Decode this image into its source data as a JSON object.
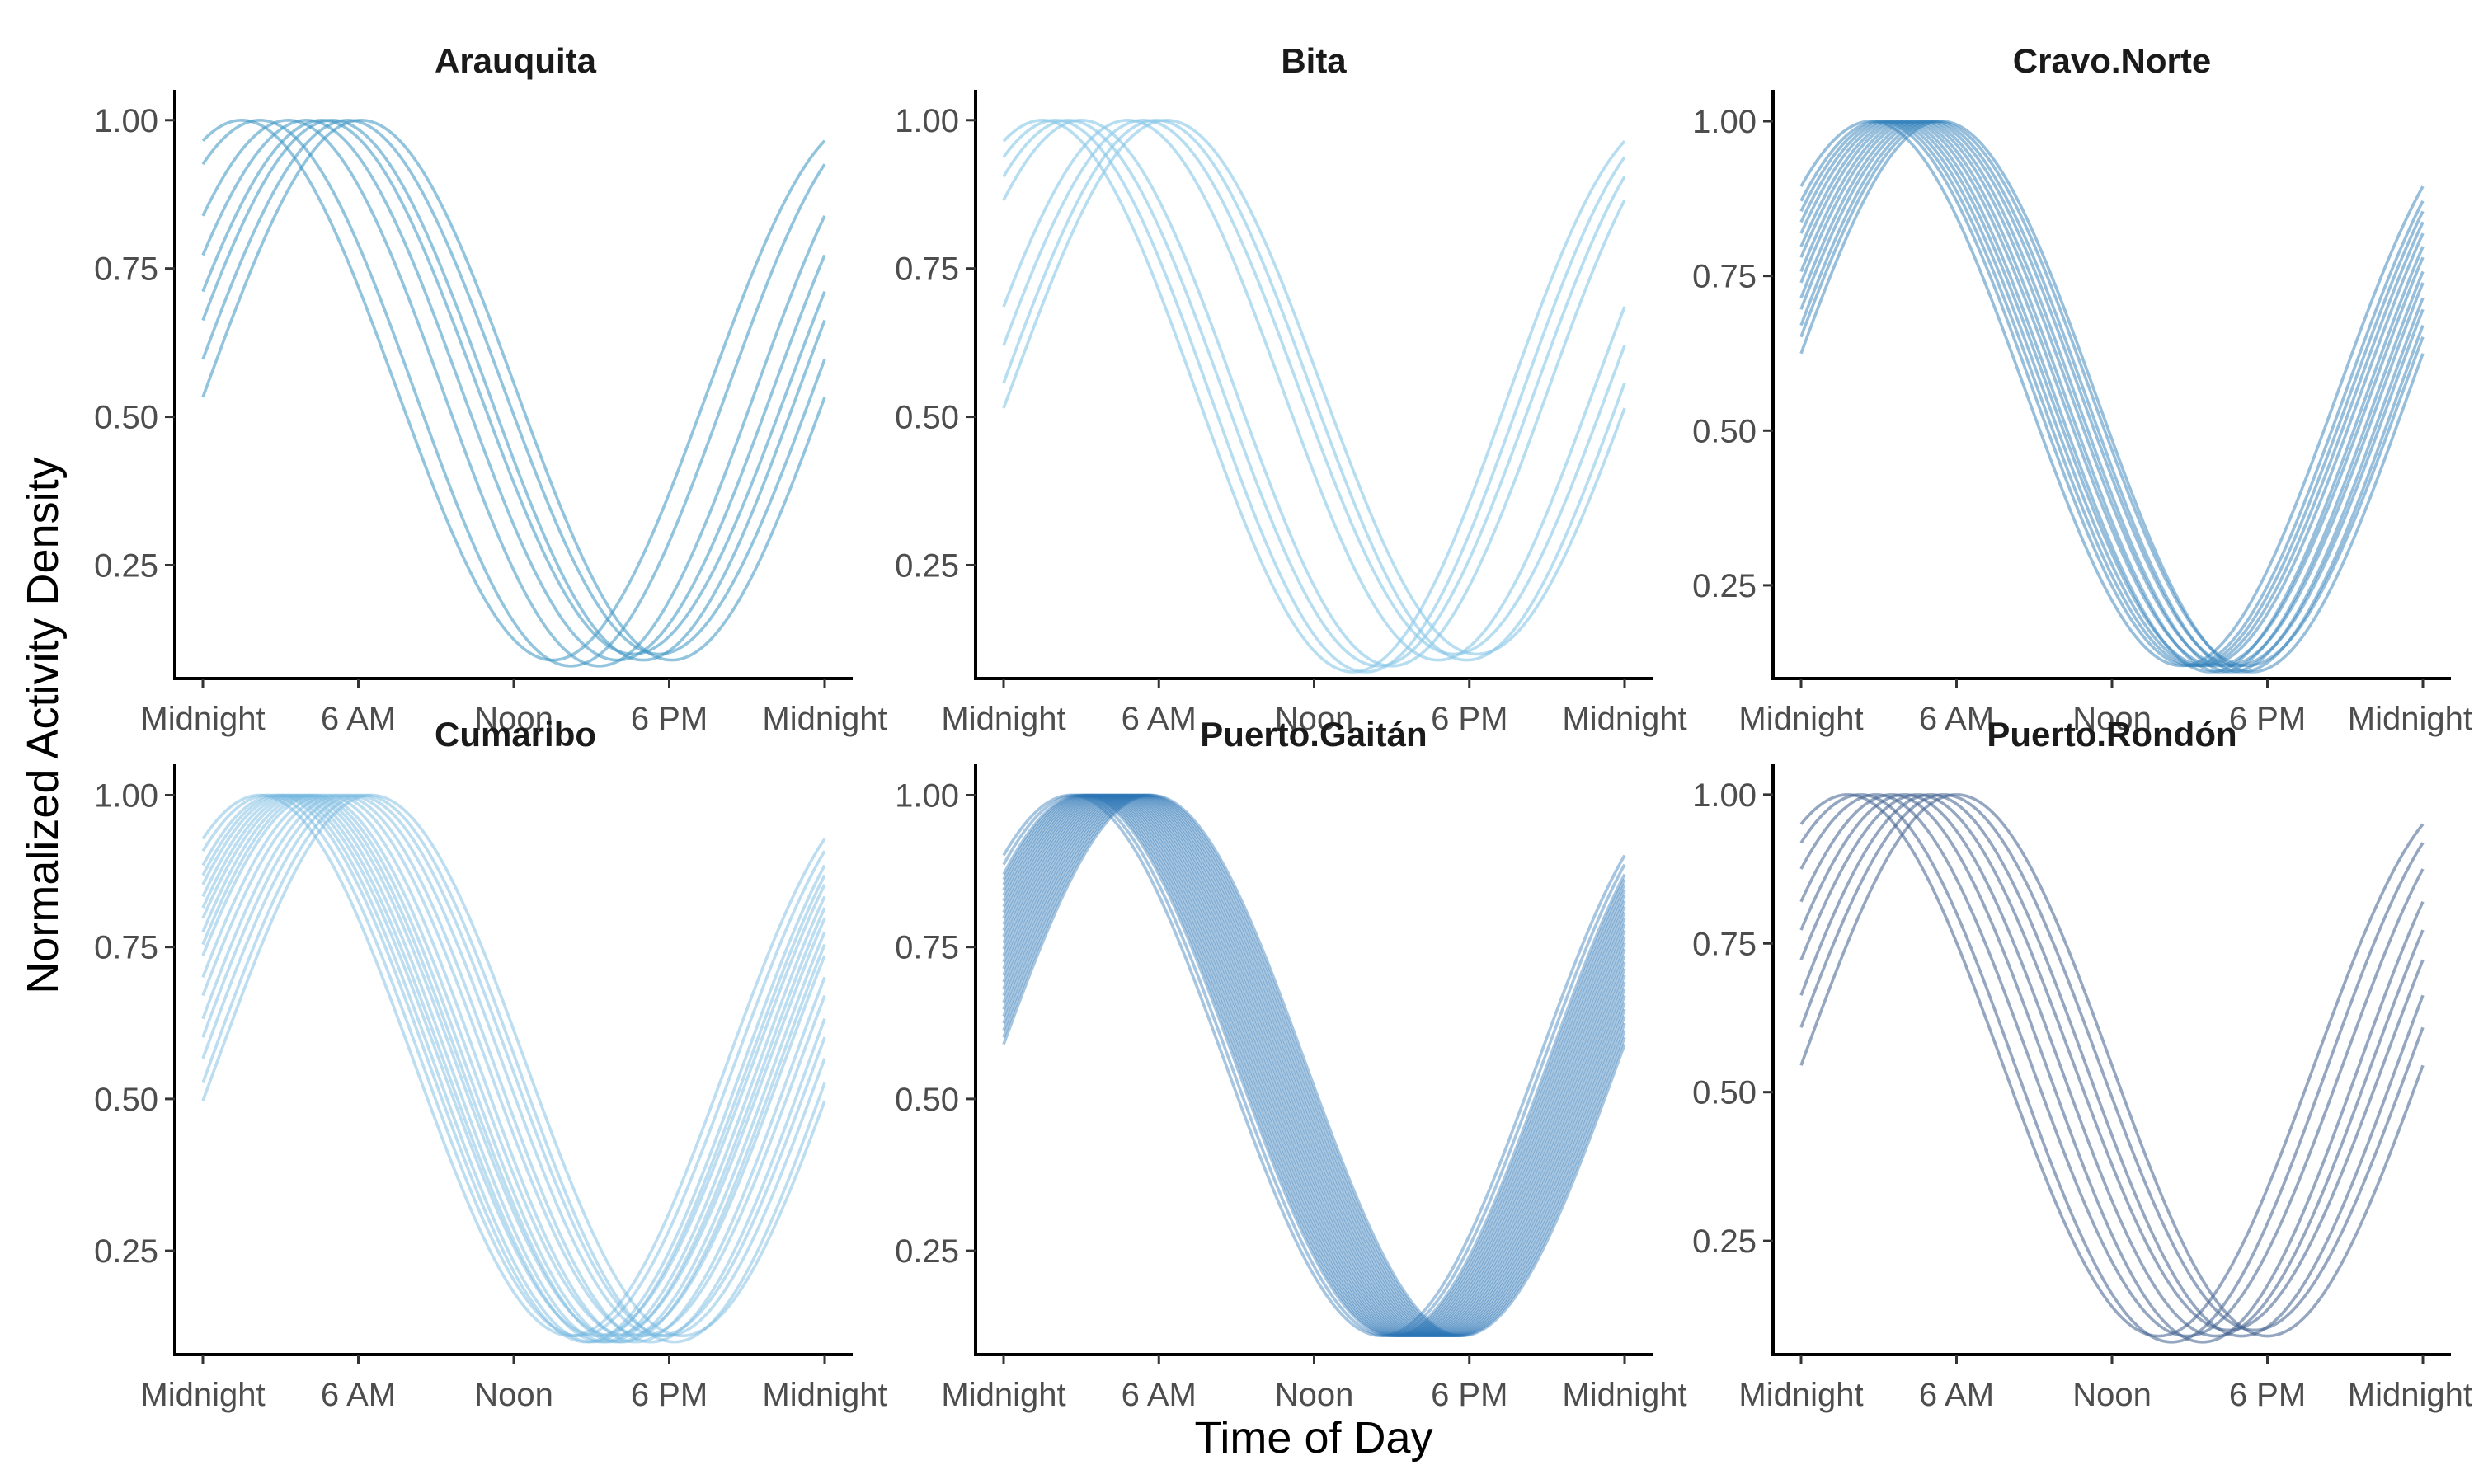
{
  "chart_data": {
    "type": "line",
    "xlabel": "Time of Day",
    "ylabel": "Normalized Activity Density",
    "x_ticks": [
      {
        "hour": 0,
        "label": "Midnight"
      },
      {
        "hour": 6,
        "label": "6 AM"
      },
      {
        "hour": 12,
        "label": "Noon"
      },
      {
        "hour": 18,
        "label": "6 PM"
      },
      {
        "hour": 24,
        "label": "Midnight"
      }
    ],
    "xlim": [
      0,
      24
    ],
    "y_ticks": [
      {
        "value": 0.25,
        "label": "0.25"
      },
      {
        "value": 0.5,
        "label": "0.50"
      },
      {
        "value": 0.75,
        "label": "0.75"
      },
      {
        "value": 1.0,
        "label": "1.00"
      }
    ],
    "grid": false,
    "legend": "none",
    "panels": [
      {
        "title": "Arauquita",
        "ylim": [
          0.07,
          1.04
        ],
        "color": "#3a93c3",
        "opacity": 0.55,
        "series": [
          {
            "peak_hour": 1.5,
            "min": 0.09
          },
          {
            "peak_hour": 2.2,
            "min": 0.08
          },
          {
            "peak_hour": 3.3,
            "min": 0.08
          },
          {
            "peak_hour": 4.0,
            "min": 0.09
          },
          {
            "peak_hour": 4.6,
            "min": 0.1
          },
          {
            "peak_hour": 5.0,
            "min": 0.09
          },
          {
            "peak_hour": 5.6,
            "min": 0.1
          },
          {
            "peak_hour": 6.1,
            "min": 0.09
          }
        ]
      },
      {
        "title": "Bita",
        "ylim": [
          0.07,
          1.04
        ],
        "color": "#87c6e8",
        "opacity": 0.6,
        "series": [
          {
            "peak_hour": 1.5,
            "min": 0.07
          },
          {
            "peak_hour": 2.0,
            "min": 0.07
          },
          {
            "peak_hour": 2.5,
            "min": 0.08
          },
          {
            "peak_hour": 3.0,
            "min": 0.08
          },
          {
            "peak_hour": 4.8,
            "min": 0.09
          },
          {
            "peak_hour": 5.4,
            "min": 0.1
          },
          {
            "peak_hour": 5.9,
            "min": 0.09
          },
          {
            "peak_hour": 6.3,
            "min": 0.1
          }
        ]
      },
      {
        "title": "Cravo.Norte",
        "ylim": [
          0.11,
          1.04
        ],
        "color": "#2f7fba",
        "opacity": 0.5,
        "series": [
          {
            "peak_hour": 2.7,
            "min": 0.12
          },
          {
            "peak_hour": 3.0,
            "min": 0.12
          },
          {
            "peak_hour": 3.2,
            "min": 0.12
          },
          {
            "peak_hour": 3.4,
            "min": 0.12
          },
          {
            "peak_hour": 3.6,
            "min": 0.12
          },
          {
            "peak_hour": 3.8,
            "min": 0.11
          },
          {
            "peak_hour": 4.0,
            "min": 0.12
          },
          {
            "peak_hour": 4.2,
            "min": 0.11
          },
          {
            "peak_hour": 4.4,
            "min": 0.12
          },
          {
            "peak_hour": 4.6,
            "min": 0.11
          },
          {
            "peak_hour": 4.8,
            "min": 0.12
          },
          {
            "peak_hour": 5.0,
            "min": 0.11
          },
          {
            "peak_hour": 5.2,
            "min": 0.12
          },
          {
            "peak_hour": 5.4,
            "min": 0.11
          }
        ]
      },
      {
        "title": "Cumaribo",
        "ylim": [
          0.09,
          1.04
        ],
        "color": "#6cb4de",
        "opacity": 0.45,
        "series": [
          {
            "peak_hour": 2.2,
            "min": 0.11
          },
          {
            "peak_hour": 2.5,
            "min": 0.11
          },
          {
            "peak_hour": 2.8,
            "min": 0.1
          },
          {
            "peak_hour": 3.0,
            "min": 0.1
          },
          {
            "peak_hour": 3.2,
            "min": 0.11
          },
          {
            "peak_hour": 3.4,
            "min": 0.1
          },
          {
            "peak_hour": 3.6,
            "min": 0.1
          },
          {
            "peak_hour": 3.8,
            "min": 0.11
          },
          {
            "peak_hour": 4.0,
            "min": 0.1
          },
          {
            "peak_hour": 4.2,
            "min": 0.1
          },
          {
            "peak_hour": 4.4,
            "min": 0.11
          },
          {
            "peak_hour": 4.7,
            "min": 0.1
          },
          {
            "peak_hour": 5.0,
            "min": 0.11
          },
          {
            "peak_hour": 5.3,
            "min": 0.1
          },
          {
            "peak_hour": 5.6,
            "min": 0.11
          },
          {
            "peak_hour": 5.9,
            "min": 0.11
          },
          {
            "peak_hour": 6.2,
            "min": 0.1
          },
          {
            "peak_hour": 6.5,
            "min": 0.11
          }
        ]
      },
      {
        "title": "Puerto.Gaitán",
        "ylim": [
          0.09,
          1.04
        ],
        "color": "#2a74b6",
        "opacity": 0.42,
        "series": [
          {
            "peak_hour": 2.6,
            "min": 0.11
          },
          {
            "peak_hour": 2.8,
            "min": 0.11
          },
          {
            "peak_hour": 3.0,
            "min": 0.11
          },
          {
            "peak_hour": 3.1,
            "min": 0.11
          },
          {
            "peak_hour": 3.2,
            "min": 0.11
          },
          {
            "peak_hour": 3.3,
            "min": 0.11
          },
          {
            "peak_hour": 3.4,
            "min": 0.11
          },
          {
            "peak_hour": 3.5,
            "min": 0.11
          },
          {
            "peak_hour": 3.6,
            "min": 0.11
          },
          {
            "peak_hour": 3.7,
            "min": 0.11
          },
          {
            "peak_hour": 3.8,
            "min": 0.11
          },
          {
            "peak_hour": 3.9,
            "min": 0.11
          },
          {
            "peak_hour": 4.0,
            "min": 0.11
          },
          {
            "peak_hour": 4.1,
            "min": 0.11
          },
          {
            "peak_hour": 4.2,
            "min": 0.11
          },
          {
            "peak_hour": 4.3,
            "min": 0.11
          },
          {
            "peak_hour": 4.4,
            "min": 0.11
          },
          {
            "peak_hour": 4.5,
            "min": 0.11
          },
          {
            "peak_hour": 4.6,
            "min": 0.11
          },
          {
            "peak_hour": 4.7,
            "min": 0.11
          },
          {
            "peak_hour": 4.8,
            "min": 0.11
          },
          {
            "peak_hour": 4.9,
            "min": 0.11
          },
          {
            "peak_hour": 5.0,
            "min": 0.11
          },
          {
            "peak_hour": 5.1,
            "min": 0.11
          },
          {
            "peak_hour": 5.2,
            "min": 0.11
          },
          {
            "peak_hour": 5.3,
            "min": 0.11
          },
          {
            "peak_hour": 5.4,
            "min": 0.11
          },
          {
            "peak_hour": 5.5,
            "min": 0.11
          },
          {
            "peak_hour": 5.6,
            "min": 0.11
          },
          {
            "peak_hour": 5.7,
            "min": 0.11
          }
        ]
      },
      {
        "title": "Puerto.Rondón",
        "ylim": [
          0.07,
          1.04
        ],
        "color": "#3c5d8c",
        "opacity": 0.55,
        "series": [
          {
            "peak_hour": 1.8,
            "min": 0.09
          },
          {
            "peak_hour": 2.3,
            "min": 0.08
          },
          {
            "peak_hour": 2.9,
            "min": 0.09
          },
          {
            "peak_hour": 3.5,
            "min": 0.08
          },
          {
            "peak_hour": 4.0,
            "min": 0.09
          },
          {
            "peak_hour": 4.5,
            "min": 0.1
          },
          {
            "peak_hour": 5.0,
            "min": 0.09
          },
          {
            "peak_hour": 5.5,
            "min": 0.1
          },
          {
            "peak_hour": 6.0,
            "min": 0.09
          }
        ]
      }
    ]
  }
}
